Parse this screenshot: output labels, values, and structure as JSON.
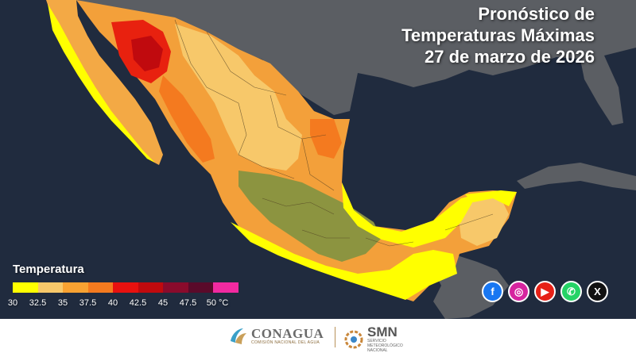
{
  "title": {
    "line1": "Pronóstico de",
    "line2": "Temperaturas Máximas",
    "line3": "27 de marzo de 2026"
  },
  "legend": {
    "title": "Temperatura",
    "colors": [
      "#ffff00",
      "#f7c86a",
      "#f8a232",
      "#f47a1f",
      "#e8110f",
      "#c00a0e",
      "#8a0b2c",
      "#5a0a2a",
      "#f22aa0"
    ],
    "ticks": [
      "30",
      "32.5",
      "35",
      "37.5",
      "40",
      "42.5",
      "45",
      "47.5",
      "50 °C"
    ]
  },
  "social": [
    {
      "icon": "facebook-icon",
      "glyph": "f",
      "color": "#1877f2"
    },
    {
      "icon": "instagram-icon",
      "glyph": "◎",
      "color": "#d6249f"
    },
    {
      "icon": "youtube-icon",
      "glyph": "▶",
      "color": "#e62117"
    },
    {
      "icon": "whatsapp-icon",
      "glyph": "✆",
      "color": "#25d366"
    },
    {
      "icon": "x-icon",
      "glyph": "X",
      "color": "#111111"
    }
  ],
  "footer": {
    "conagua_name": "CONAGUA",
    "conagua_sub": "COMISIÓN NACIONAL DEL AGUA",
    "smn_name": "SMN",
    "smn_sub": "SERVICIO METEOROLÓGICO NACIONAL"
  }
}
